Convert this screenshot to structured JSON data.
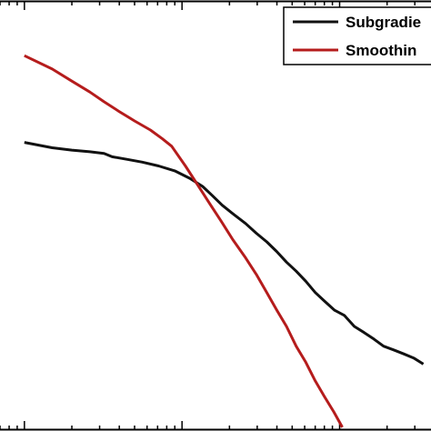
{
  "chart_data": {
    "type": "line",
    "title": "",
    "xlabel": "",
    "ylabel": "",
    "xscale": "log",
    "yscale": "log",
    "grid": false,
    "legend": {
      "placement": "top-right",
      "entries": [
        "Subgradie",
        "Smoothin"
      ]
    },
    "series": [
      {
        "name": "Subgradie",
        "color": "#111111",
        "points": [
          [
            1.0,
            0.012
          ],
          [
            1.5,
            0.0113
          ],
          [
            2.0,
            0.011
          ],
          [
            2.6,
            0.0108
          ],
          [
            3.2,
            0.0106
          ],
          [
            3.6,
            0.0102
          ],
          [
            4.5,
            0.0099
          ],
          [
            5.6,
            0.0096
          ],
          [
            7.1,
            0.0092
          ],
          [
            9.0,
            0.0087
          ],
          [
            11.2,
            0.008
          ],
          [
            13.5,
            0.0073
          ],
          [
            15.5,
            0.0066
          ],
          [
            18.0,
            0.0059
          ],
          [
            21.4,
            0.0053
          ],
          [
            25.3,
            0.0048
          ],
          [
            29.6,
            0.0043
          ],
          [
            34.5,
            0.0039
          ],
          [
            39.8,
            0.0035
          ],
          [
            46.0,
            0.0031
          ],
          [
            53.0,
            0.0028
          ],
          [
            61.0,
            0.0025
          ],
          [
            70.0,
            0.0022
          ],
          [
            80.0,
            0.002
          ],
          [
            93.0,
            0.0018
          ],
          [
            107.0,
            0.0017
          ],
          [
            124.0,
            0.0015
          ],
          [
            143.0,
            0.0014
          ],
          [
            165.0,
            0.0013
          ],
          [
            190.0,
            0.0012
          ],
          [
            220.0,
            0.00115
          ],
          [
            255.0,
            0.0011
          ],
          [
            295.0,
            0.00105
          ],
          [
            340.0,
            0.00098
          ]
        ]
      },
      {
        "name": "Smoothin",
        "color": "#b51c1c",
        "points": [
          [
            1.0,
            0.032
          ],
          [
            1.5,
            0.0275
          ],
          [
            2.0,
            0.024
          ],
          [
            2.6,
            0.0212
          ],
          [
            3.2,
            0.019
          ],
          [
            4.0,
            0.017
          ],
          [
            5.0,
            0.0153
          ],
          [
            6.3,
            0.0138
          ],
          [
            7.5,
            0.0125
          ],
          [
            8.6,
            0.0115
          ],
          [
            10.5,
            0.0092
          ],
          [
            12.6,
            0.0074
          ],
          [
            15.0,
            0.006
          ],
          [
            17.8,
            0.0049
          ],
          [
            21.0,
            0.004
          ],
          [
            25.0,
            0.0033
          ],
          [
            29.6,
            0.0027
          ],
          [
            34.5,
            0.0022
          ],
          [
            40.0,
            0.0018
          ],
          [
            46.0,
            0.0015
          ],
          [
            53.0,
            0.0012
          ],
          [
            61.0,
            0.001
          ],
          [
            70.0,
            0.00081
          ],
          [
            80.0,
            0.00068
          ],
          [
            92.0,
            0.00057
          ],
          [
            104.0,
            0.00048
          ]
        ]
      }
    ],
    "xlim": [
      0.7,
      380
    ],
    "ylim": [
      0.00046,
      0.06
    ],
    "xticks_major": [
      1,
      10,
      100
    ]
  },
  "colors": {
    "axes": "#000000",
    "background": "#ffffff"
  }
}
